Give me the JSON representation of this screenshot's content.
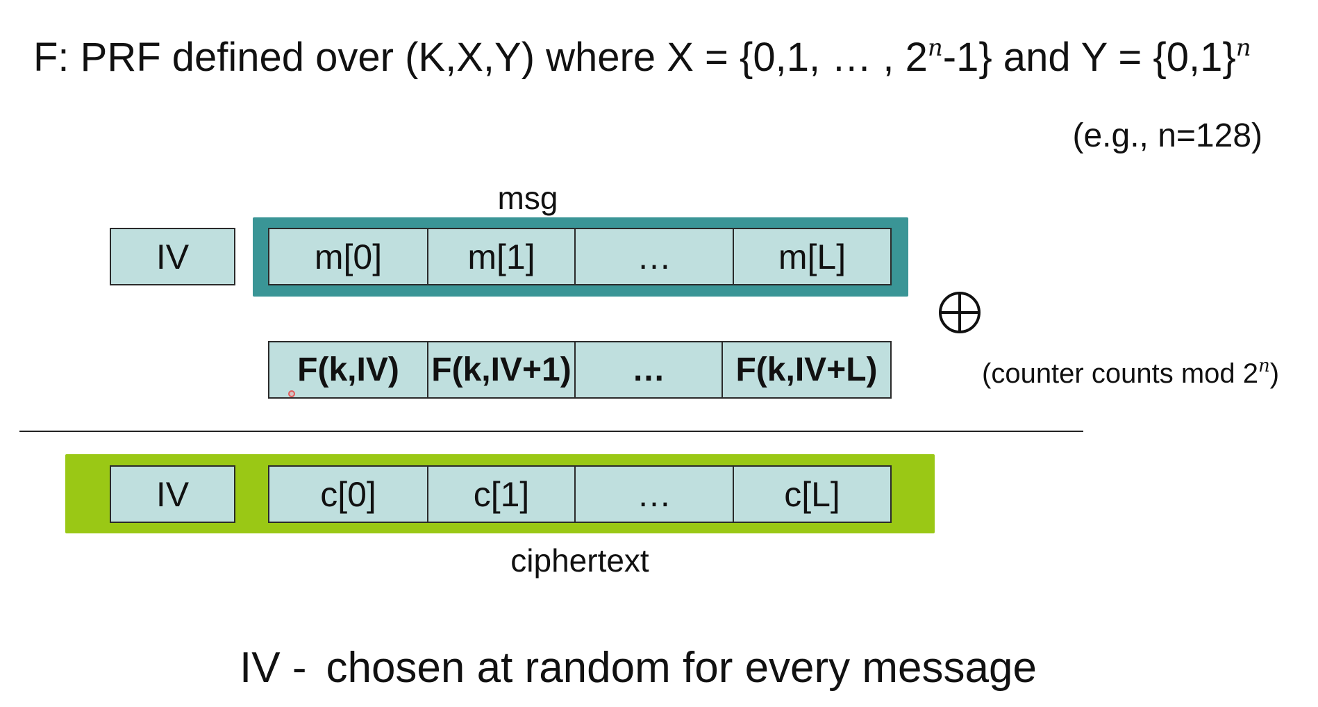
{
  "title": {
    "prefix": "F: PRF defined over (K,X,Y)  where X = {0,1, … , 2",
    "exp1": "n",
    "middle": "-1} and Y = {0,1}",
    "exp2": "n"
  },
  "example": "(e.g.,  n=128)",
  "msg_label": "msg",
  "msg_row": {
    "iv": "IV",
    "blocks": [
      "m[0]",
      "m[1]",
      "…",
      "m[L]"
    ]
  },
  "prf_row": {
    "blocks": [
      "F(k,IV)",
      "F(k,IV+1)",
      "…",
      "F(k,IV+L)"
    ]
  },
  "xor_symbol": "⊕",
  "counter_note": {
    "prefix": "(counter counts mod 2",
    "exp": "n",
    "suffix": ")"
  },
  "ct_row": {
    "iv": "IV",
    "blocks": [
      "c[0]",
      "c[1]",
      "…",
      "c[L]"
    ]
  },
  "ciphertext_label": "ciphertext",
  "footer": {
    "lead": "IV -",
    "text": "chosen at random for every message"
  },
  "colors": {
    "msg_band": "#3a9596",
    "ct_band": "#9ac815",
    "cell_fill": "#bfdfde"
  }
}
